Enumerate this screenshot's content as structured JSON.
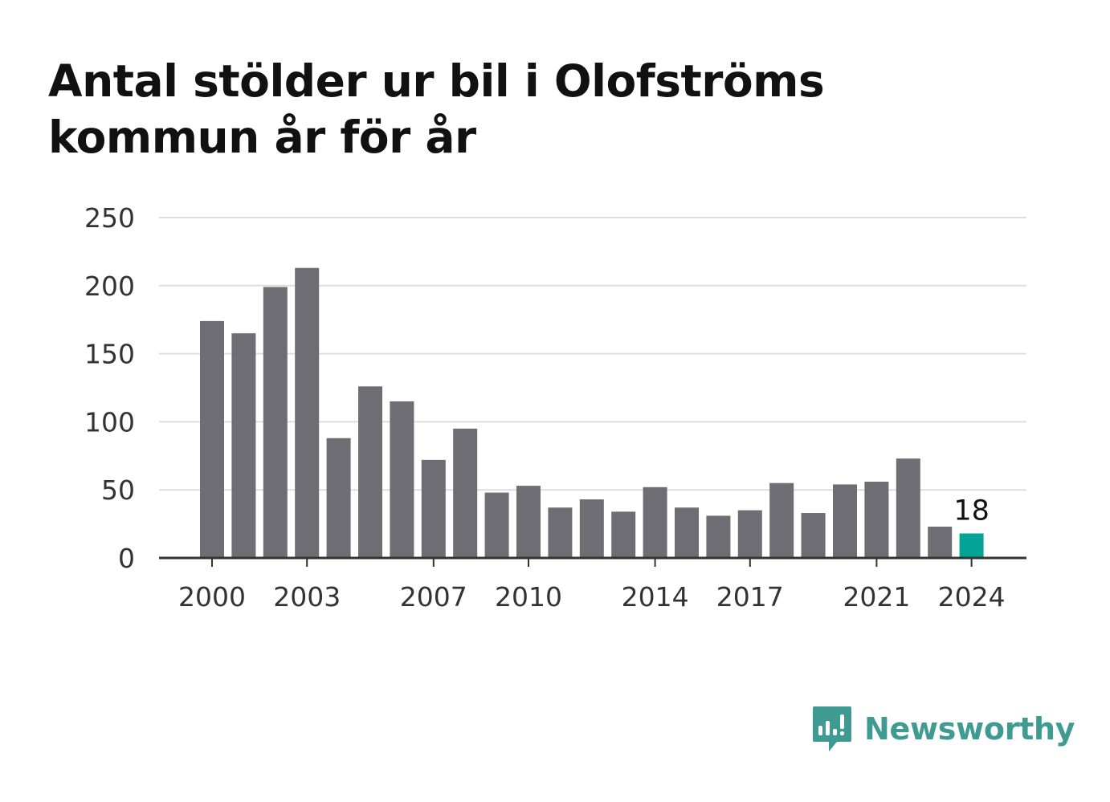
{
  "title_lines": [
    "Antal stölder ur bil i Olofströms",
    "kommun år för år"
  ],
  "brand": {
    "name": "Newsworthy",
    "icon": "newsworthy-logo-icon",
    "color": "#3f9a92"
  },
  "colors": {
    "bar": "#6e6d73",
    "highlight": "#05a396",
    "grid": "#dddddd",
    "axis": "#333333"
  },
  "chart_data": {
    "type": "bar",
    "title": "Antal stölder ur bil i Olofströms kommun år för år",
    "xlabel": "",
    "ylabel": "",
    "categories": [
      2000,
      2001,
      2002,
      2003,
      2004,
      2005,
      2006,
      2007,
      2008,
      2009,
      2010,
      2011,
      2012,
      2013,
      2014,
      2015,
      2016,
      2017,
      2018,
      2019,
      2020,
      2021,
      2022,
      2023,
      2024
    ],
    "values": [
      174,
      165,
      199,
      213,
      88,
      126,
      115,
      72,
      95,
      48,
      53,
      37,
      43,
      34,
      52,
      37,
      31,
      35,
      55,
      33,
      54,
      56,
      73,
      23,
      18
    ],
    "x_tick_labels": [
      "2000",
      "2003",
      "2007",
      "2010",
      "2014",
      "2017",
      "2021",
      "2024"
    ],
    "y_ticks": [
      0,
      50,
      100,
      150,
      200,
      250
    ],
    "ylim": [
      0,
      250
    ],
    "grid": true,
    "highlight": {
      "category": 2024,
      "label": "18"
    }
  }
}
